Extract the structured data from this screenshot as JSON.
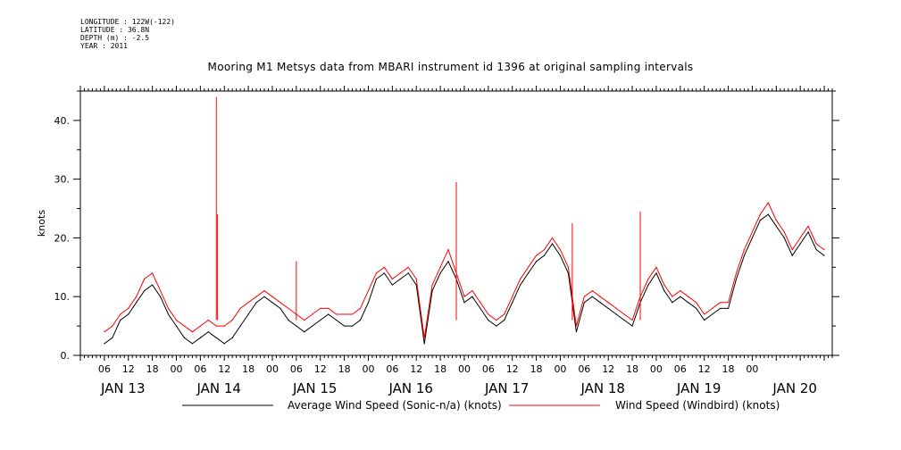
{
  "header": {
    "lines": [
      "LONGITUDE : 122W(-122)",
      "LATITUDE : 36.8N",
      "DEPTH (m) : -2.5",
      "YEAR : 2011"
    ],
    "title": "Mooring M1 Metsys data from MBARI instrument id 1396 at original sampling intervals"
  },
  "chart_data": {
    "type": "line",
    "title": "Mooring M1 Metsys data from MBARI instrument id 1396 at original sampling intervals",
    "ylabel": "knots",
    "xlabel": "",
    "ylim": [
      0,
      45
    ],
    "yticks": [
      0,
      10,
      20,
      30,
      40
    ],
    "ytick_labels": [
      "0.",
      "10.",
      "20.",
      "30.",
      "40."
    ],
    "xlim_hours": [
      0,
      188
    ],
    "xtick_hour_labels": [
      "06",
      "12",
      "18",
      "00",
      "06",
      "12",
      "18",
      "00",
      "06",
      "12",
      "18",
      "00",
      "06",
      "12",
      "18",
      "00",
      "06",
      "12",
      "18",
      "00",
      "06",
      "12",
      "18",
      "00",
      "06",
      "12",
      "18",
      "00"
    ],
    "day_labels": [
      "JAN 13",
      "JAN 14",
      "JAN 15",
      "JAN 16",
      "JAN 17",
      "JAN 18",
      "JAN 19",
      "JAN 20"
    ],
    "x_unit": "hours after 00 JAN 13 2011",
    "series": [
      {
        "name": "Average Wind Speed (Sonic-n/a) (knots)",
        "color": "#000000",
        "x": [
          6,
          8,
          10,
          12,
          14,
          16,
          18,
          20,
          22,
          24,
          26,
          28,
          30,
          32,
          34,
          36,
          38,
          40,
          42,
          44,
          46,
          48,
          50,
          52,
          54,
          56,
          58,
          60,
          62,
          64,
          66,
          68,
          70,
          72,
          74,
          76,
          78,
          80,
          82,
          84,
          86,
          88,
          90,
          92,
          94,
          96,
          98,
          100,
          102,
          104,
          106,
          108,
          110,
          112,
          114,
          116,
          118,
          120,
          122,
          124,
          126,
          128,
          130,
          132,
          134,
          136,
          138,
          140,
          142,
          144,
          146,
          148,
          150,
          152,
          154,
          156,
          158,
          160,
          162,
          164,
          166,
          168,
          170,
          172,
          174,
          176,
          178,
          180,
          182,
          184,
          186
        ],
        "y": [
          2,
          3,
          6,
          7,
          9,
          11,
          12,
          10,
          7,
          5,
          3,
          2,
          3,
          4,
          3,
          2,
          3,
          5,
          7,
          9,
          10,
          9,
          8,
          6,
          5,
          4,
          5,
          6,
          7,
          6,
          5,
          5,
          6,
          9,
          13,
          14,
          12,
          13,
          14,
          12,
          2,
          11,
          14,
          16,
          13,
          9,
          10,
          8,
          6,
          5,
          6,
          9,
          12,
          14,
          16,
          17,
          19,
          17,
          14,
          4,
          9,
          10,
          9,
          8,
          7,
          6,
          5,
          9,
          12,
          14,
          11,
          9,
          10,
          9,
          8,
          6,
          7,
          8,
          8,
          13,
          17,
          20,
          23,
          24,
          22,
          20,
          17,
          19,
          21,
          18,
          17
        ]
      },
      {
        "name": "Wind Speed (Windbird) (knots)",
        "color": "#ff0000",
        "x": [
          6,
          8,
          10,
          12,
          14,
          16,
          18,
          20,
          22,
          24,
          26,
          28,
          30,
          32,
          34,
          36,
          38,
          40,
          42,
          44,
          46,
          48,
          50,
          52,
          54,
          56,
          58,
          60,
          62,
          64,
          66,
          68,
          70,
          72,
          74,
          76,
          78,
          80,
          82,
          84,
          86,
          88,
          90,
          92,
          94,
          96,
          98,
          100,
          102,
          104,
          106,
          108,
          110,
          112,
          114,
          116,
          118,
          120,
          122,
          124,
          126,
          128,
          130,
          132,
          134,
          136,
          138,
          140,
          142,
          144,
          146,
          148,
          150,
          152,
          154,
          156,
          158,
          160,
          162,
          164,
          166,
          168,
          170,
          172,
          174,
          176,
          178,
          180,
          182,
          184,
          186
        ],
        "y": [
          4,
          5,
          7,
          8,
          10,
          13,
          14,
          11,
          8,
          6,
          5,
          4,
          5,
          6,
          5,
          5,
          6,
          8,
          9,
          10,
          11,
          10,
          9,
          8,
          7,
          6,
          7,
          8,
          8,
          7,
          7,
          7,
          8,
          11,
          14,
          15,
          13,
          14,
          15,
          13,
          3,
          12,
          15,
          18,
          14,
          10,
          11,
          9,
          7,
          6,
          7,
          10,
          13,
          15,
          17,
          18,
          20,
          18,
          15,
          5,
          10,
          11,
          10,
          9,
          8,
          7,
          6,
          10,
          13,
          15,
          12,
          10,
          11,
          10,
          9,
          7,
          8,
          9,
          9,
          14,
          18,
          21,
          24,
          26,
          23,
          21,
          18,
          20,
          22,
          19,
          18
        ]
      }
    ],
    "spikes": [
      {
        "x": 34,
        "y": 44
      },
      {
        "x": 34.3,
        "y": 24
      },
      {
        "x": 54,
        "y": 16
      },
      {
        "x": 94,
        "y": 29.5
      },
      {
        "x": 123,
        "y": 22.5
      },
      {
        "x": 140,
        "y": 24.5
      }
    ],
    "grid": false
  },
  "legend": {
    "items": [
      {
        "label": "Average Wind Speed (Sonic-n/a) (knots)",
        "color": "#000000"
      },
      {
        "label": "Wind Speed (Windbird) (knots)",
        "color": "#ff0000"
      }
    ]
  }
}
